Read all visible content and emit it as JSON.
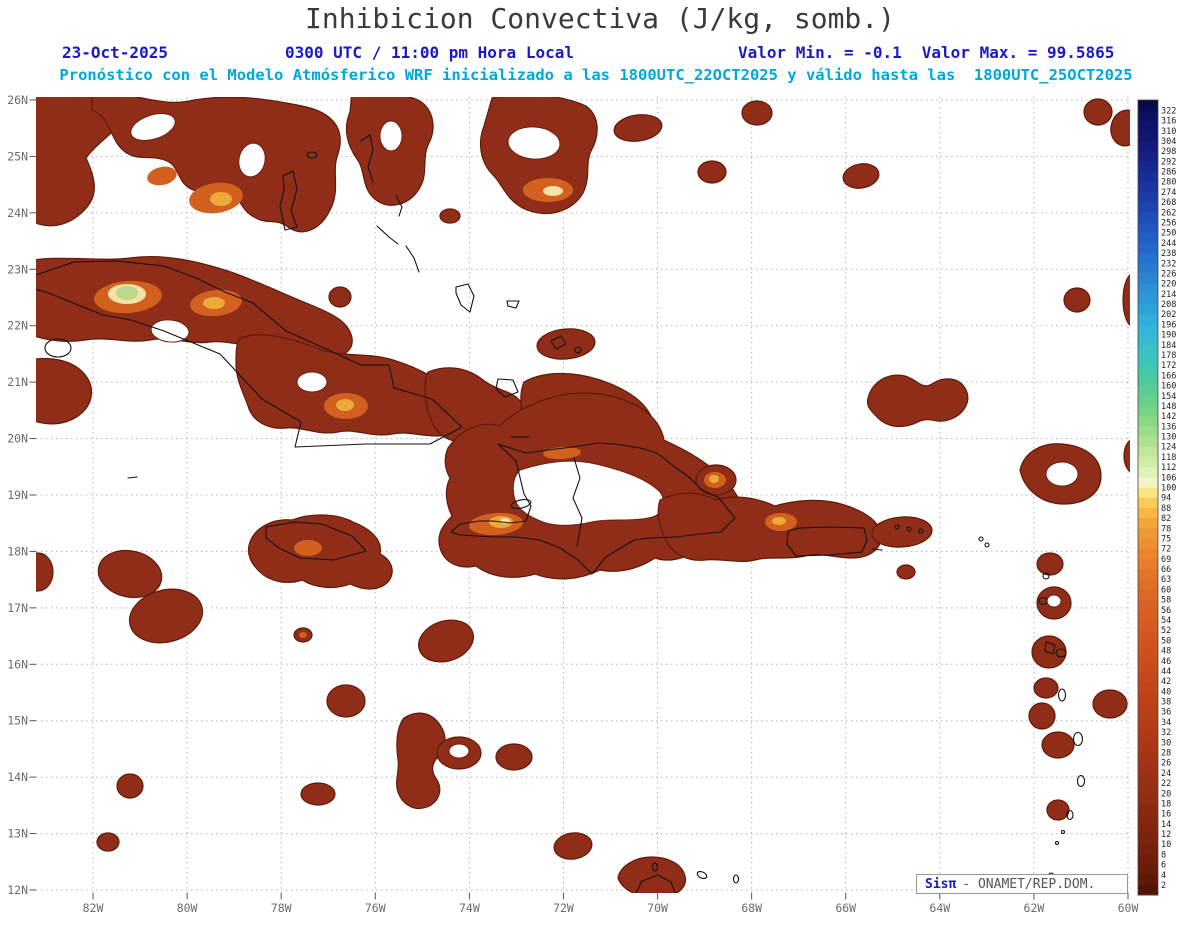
{
  "header": {
    "title": "Inhibicion Convectiva (J/kg, somb.)",
    "date": "23-Oct-2025",
    "time": "0300 UTC / 11:00 pm Hora Local",
    "min_label": "Valor Min. = -0.1",
    "max_label": "Valor Max. = 99.5865",
    "forecast": "Pronóstico con el Modelo Atmósferico WRF inicializado a las 1800UTC_22OCT2025 y válido hasta las  1800UTC_25OCT2025"
  },
  "attribution": {
    "brand": "Sisπ",
    "org": "- ONAMET/REP.DOM."
  },
  "axes": {
    "lat": [
      "26N",
      "25N",
      "24N",
      "23N",
      "22N",
      "21N",
      "20N",
      "19N",
      "18N",
      "17N",
      "16N",
      "15N",
      "14N",
      "13N",
      "12N"
    ],
    "lon": [
      "82W",
      "80W",
      "78W",
      "76W",
      "74W",
      "72W",
      "70W",
      "68W",
      "66W",
      "64W",
      "62W",
      "60W"
    ]
  },
  "colorbar": {
    "levels": [
      2,
      4,
      6,
      8,
      10,
      12,
      14,
      16,
      18,
      20,
      22,
      24,
      26,
      28,
      30,
      32,
      34,
      36,
      38,
      40,
      42,
      44,
      46,
      48,
      50,
      52,
      54,
      56,
      58,
      60,
      63,
      66,
      69,
      72,
      75,
      78,
      82,
      88,
      94,
      100,
      106,
      112,
      118,
      124,
      130,
      136,
      142,
      148,
      154,
      160,
      166,
      172,
      178,
      184,
      190,
      196,
      202,
      208,
      214,
      220,
      226,
      232,
      238,
      244,
      250,
      256,
      262,
      268,
      274,
      280,
      286,
      292,
      298,
      304,
      310,
      316,
      322
    ],
    "gradient": [
      {
        "value": 0,
        "color": "#501404"
      },
      {
        "value": 6,
        "color": "#6b1d0a"
      },
      {
        "value": 14,
        "color": "#84260f"
      },
      {
        "value": 22,
        "color": "#9a2f14"
      },
      {
        "value": 30,
        "color": "#ad3817"
      },
      {
        "value": 40,
        "color": "#c14419"
      },
      {
        "value": 50,
        "color": "#d05420"
      },
      {
        "value": 60,
        "color": "#dd6a26"
      },
      {
        "value": 68,
        "color": "#e87e2c"
      },
      {
        "value": 76,
        "color": "#f09636"
      },
      {
        "value": 84,
        "color": "#f6b344"
      },
      {
        "value": 92,
        "color": "#fbd05a"
      },
      {
        "value": 98,
        "color": "#fde98c"
      },
      {
        "value": 100,
        "color": "#fcf7ce"
      },
      {
        "value": 104,
        "color": "#eef6c4"
      },
      {
        "value": 112,
        "color": "#d8efae"
      },
      {
        "value": 124,
        "color": "#b7e595"
      },
      {
        "value": 136,
        "color": "#93da87"
      },
      {
        "value": 148,
        "color": "#6ed084"
      },
      {
        "value": 166,
        "color": "#48c9a2"
      },
      {
        "value": 180,
        "color": "#3ac3c3"
      },
      {
        "value": 194,
        "color": "#34b4d8"
      },
      {
        "value": 210,
        "color": "#2f9ad8"
      },
      {
        "value": 226,
        "color": "#2a80d4"
      },
      {
        "value": 242,
        "color": "#2566c9"
      },
      {
        "value": 258,
        "color": "#204db8"
      },
      {
        "value": 274,
        "color": "#1b38a4"
      },
      {
        "value": 290,
        "color": "#16268c"
      },
      {
        "value": 306,
        "color": "#111872"
      },
      {
        "value": 322,
        "color": "#0c0e5a"
      },
      {
        "value": 330,
        "color": "#090948"
      }
    ]
  },
  "map_colors": {
    "field_main": "#8f2d18",
    "field_edge": "#5f1a0a",
    "field_orange": "#d2611f",
    "field_yellow": "#eda93a",
    "field_pale": "#f6e2a4",
    "field_green": "#b9da8d",
    "grid": "#b4b4b4",
    "coastline": "#111111",
    "header_blue": "#1a1ac8",
    "header_cyan": "#00a8d8"
  },
  "chart_data": {
    "type": "heatmap",
    "title": "Inhibicion Convectiva (J/kg, somb.)",
    "units": "J/kg",
    "value_min": -0.1,
    "value_max": 99.5865,
    "valid_time": "0300 UTC / 11:00 pm Hora Local, 23-Oct-2025",
    "model": "WRF",
    "initialized": "1800UTC_22OCT2025",
    "valid_until": "1800UTC_25OCT2025",
    "lat_range": [
      "12N",
      "26N"
    ],
    "lon_range": [
      "60W",
      "83W"
    ],
    "shading_range_shown": [
      2,
      100
    ],
    "field_summary": "Dark-red shading (CIN 2-40 J/kg) with orange/yellow cores (40-100 J/kg) over the Bahamas, Cuba (pale green maximum near 80.5W 22.8N), Jamaica, the coasts of Hispaniola, Puerto Rico, the Lesser Antilles arc and scattered Caribbean Sea patches; the interior of Hispaniola is mostly unshaded"
  }
}
